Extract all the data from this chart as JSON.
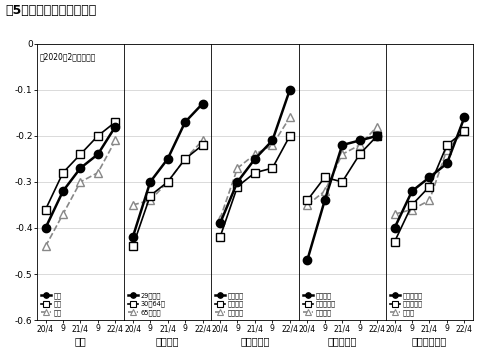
{
  "title": "図5　主観的健康感の推移",
  "subtitle": "（2020年2月との差）",
  "x_labels": [
    "20/4",
    "9",
    "21/4",
    "9",
    "22/4"
  ],
  "ylim": [
    -0.6,
    0.0
  ],
  "yticks": [
    0,
    -0.1,
    -0.2,
    -0.3,
    -0.4,
    -0.5,
    -0.6
  ],
  "panels": [
    {
      "title": "性別",
      "series": [
        {
          "label": "平均",
          "style": "circle_black_solid",
          "color": "#000000",
          "linestyle": "-",
          "linewidth": 1.8,
          "marker": "o",
          "markersize": 6,
          "markerfacecolor": "#000000",
          "zorder": 3,
          "values": [
            -0.4,
            -0.32,
            -0.27,
            -0.24,
            -0.18
          ]
        },
        {
          "label": "女性",
          "style": "square_white_solid",
          "color": "#000000",
          "linestyle": "-",
          "linewidth": 1.2,
          "marker": "s",
          "markersize": 6,
          "markerfacecolor": "#ffffff",
          "zorder": 2,
          "values": [
            -0.36,
            -0.28,
            -0.24,
            -0.2,
            -0.17
          ]
        },
        {
          "label": "男性",
          "style": "triangle_white_dashed",
          "color": "#888888",
          "linestyle": "--",
          "linewidth": 1.2,
          "marker": "^",
          "markersize": 6,
          "markerfacecolor": "#ffffff",
          "zorder": 1,
          "values": [
            -0.44,
            -0.37,
            -0.3,
            -0.28,
            -0.21
          ]
        }
      ]
    },
    {
      "title": "年齢層別",
      "series": [
        {
          "label": "29歳以下",
          "style": "circle_black_solid",
          "color": "#000000",
          "linestyle": "-",
          "linewidth": 1.8,
          "marker": "o",
          "markersize": 6,
          "markerfacecolor": "#000000",
          "zorder": 3,
          "values": [
            -0.42,
            -0.3,
            -0.25,
            -0.17,
            -0.13
          ]
        },
        {
          "label": "30－64歳",
          "style": "square_white_solid",
          "color": "#000000",
          "linestyle": "-",
          "linewidth": 1.2,
          "marker": "s",
          "markersize": 6,
          "markerfacecolor": "#ffffff",
          "zorder": 2,
          "values": [
            -0.44,
            -0.33,
            -0.3,
            -0.25,
            -0.22
          ]
        },
        {
          "label": "65歳以上",
          "style": "triangle_white_dashed",
          "color": "#888888",
          "linestyle": "--",
          "linewidth": 1.2,
          "marker": "^",
          "markersize": 6,
          "markerfacecolor": "#ffffff",
          "zorder": 1,
          "values": [
            -0.35,
            -0.34,
            -0.3,
            -0.25,
            -0.21
          ]
        }
      ]
    },
    {
      "title": "所得階層別",
      "series": [
        {
          "label": "低所得層",
          "style": "circle_black_solid",
          "color": "#000000",
          "linestyle": "-",
          "linewidth": 1.8,
          "marker": "o",
          "markersize": 6,
          "markerfacecolor": "#000000",
          "zorder": 3,
          "values": [
            -0.39,
            -0.3,
            -0.25,
            -0.21,
            -0.1
          ]
        },
        {
          "label": "中所得層",
          "style": "square_white_solid",
          "color": "#000000",
          "linestyle": "-",
          "linewidth": 1.2,
          "marker": "s",
          "markersize": 6,
          "markerfacecolor": "#ffffff",
          "zorder": 2,
          "values": [
            -0.42,
            -0.31,
            -0.28,
            -0.27,
            -0.2
          ]
        },
        {
          "label": "高所得層",
          "style": "triangle_white_dashed",
          "color": "#888888",
          "linestyle": "--",
          "linewidth": 1.2,
          "marker": "^",
          "markersize": 6,
          "markerfacecolor": "#ffffff",
          "zorder": 1,
          "values": [
            -0.38,
            -0.27,
            -0.24,
            -0.22,
            -0.16
          ]
        }
      ]
    },
    {
      "title": "就業形態別",
      "series": [
        {
          "label": "正規雇用",
          "style": "circle_black_solid",
          "color": "#000000",
          "linestyle": "-",
          "linewidth": 1.8,
          "marker": "o",
          "markersize": 6,
          "markerfacecolor": "#000000",
          "zorder": 3,
          "values": [
            -0.47,
            -0.34,
            -0.22,
            -0.21,
            -0.2
          ]
        },
        {
          "label": "非正規雇用",
          "style": "square_white_solid",
          "color": "#000000",
          "linestyle": "-",
          "linewidth": 1.2,
          "marker": "s",
          "markersize": 6,
          "markerfacecolor": "#ffffff",
          "zorder": 2,
          "values": [
            -0.34,
            -0.29,
            -0.3,
            -0.24,
            -0.2
          ]
        },
        {
          "label": "自営ほか",
          "style": "triangle_white_dashed",
          "color": "#888888",
          "linestyle": "--",
          "linewidth": 1.2,
          "marker": "^",
          "markersize": 6,
          "markerfacecolor": "#ffffff",
          "zorder": 1,
          "values": [
            -0.35,
            -0.32,
            -0.24,
            -0.22,
            -0.18
          ]
        }
      ]
    },
    {
      "title": "業種職種ほか",
      "series": [
        {
          "label": "特定業職種",
          "style": "circle_black_solid",
          "color": "#000000",
          "linestyle": "-",
          "linewidth": 1.8,
          "marker": "o",
          "markersize": 6,
          "markerfacecolor": "#000000",
          "zorder": 3,
          "values": [
            -0.4,
            -0.32,
            -0.29,
            -0.26,
            -0.16
          ]
        },
        {
          "label": "ほか業職種",
          "style": "square_white_solid",
          "color": "#000000",
          "linestyle": "-",
          "linewidth": 1.2,
          "marker": "s",
          "markersize": 6,
          "markerfacecolor": "#ffffff",
          "zorder": 2,
          "values": [
            -0.43,
            -0.35,
            -0.31,
            -0.22,
            -0.19
          ]
        },
        {
          "label": "非就業",
          "style": "triangle_white_dashed",
          "color": "#888888",
          "linestyle": "--",
          "linewidth": 1.2,
          "marker": "^",
          "markersize": 6,
          "markerfacecolor": "#ffffff",
          "zorder": 1,
          "values": [
            -0.37,
            -0.36,
            -0.34,
            -0.23,
            -0.19
          ]
        }
      ]
    }
  ]
}
